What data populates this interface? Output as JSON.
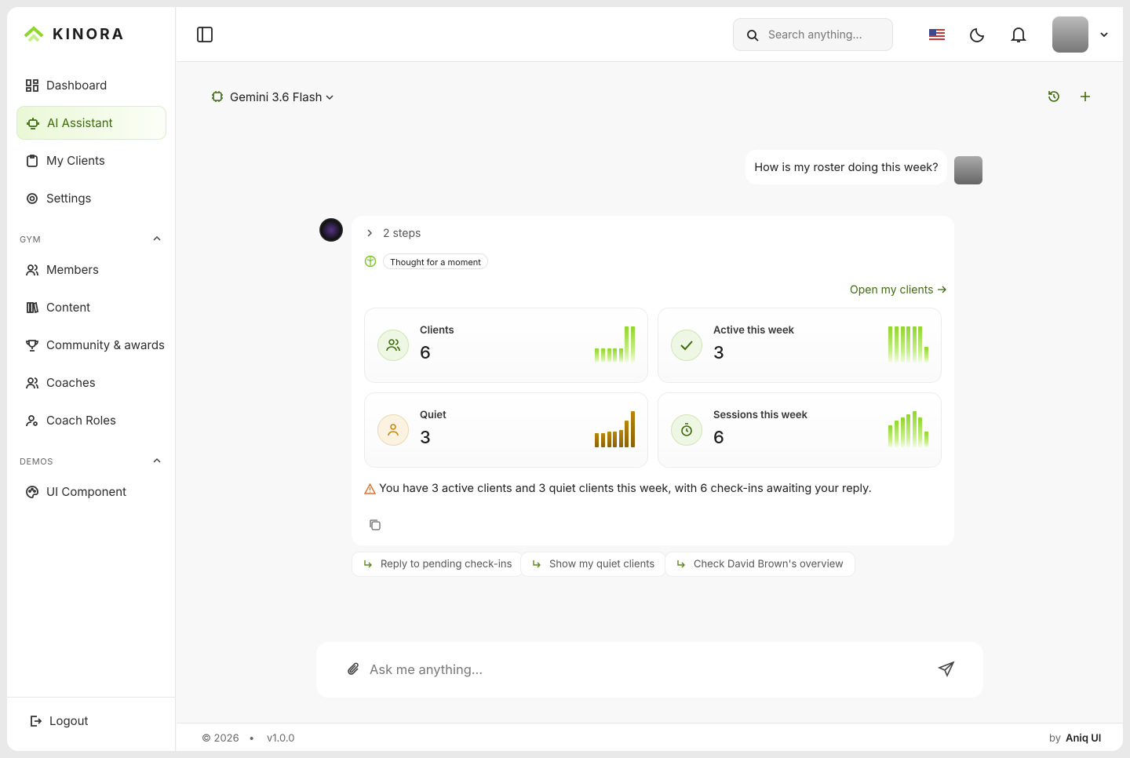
{
  "brand": "KINORA",
  "nav": {
    "main": [
      "Dashboard",
      "AI Assistant",
      "My Clients",
      "Settings"
    ],
    "sections": [
      {
        "title": "GYM",
        "items": [
          "Members",
          "Content",
          "Community & awards",
          "Coaches",
          "Coach Roles"
        ]
      },
      {
        "title": "DEMOS",
        "items": [
          "UI Component"
        ]
      }
    ],
    "logout": "Logout"
  },
  "header": {
    "search_placeholder": "Search anything..."
  },
  "chat": {
    "model": "Gemini 3.6 Flash",
    "user_message": "How is my roster doing this week?",
    "steps": "2 steps",
    "thought": "Thought for a moment",
    "link": "Open my clients",
    "stats": [
      {
        "label": "Clients",
        "value": 6
      },
      {
        "label": "Active this week",
        "value": 3
      },
      {
        "label": "Quiet",
        "value": 3
      },
      {
        "label": "Sessions this week",
        "value": 6
      }
    ],
    "summary": "You have 3 active clients and 3 quiet clients this week, with 6 check-ins awaiting your reply.",
    "suggestions": [
      "Reply to pending check-ins",
      "Show my quiet clients",
      "Check David Brown's overview"
    ],
    "input_placeholder": "Ask me anything..."
  },
  "footer": {
    "copyright": "© 2026",
    "separator": "•",
    "version": "v1.0.0",
    "by": "by",
    "credit": "Aniq UI"
  }
}
